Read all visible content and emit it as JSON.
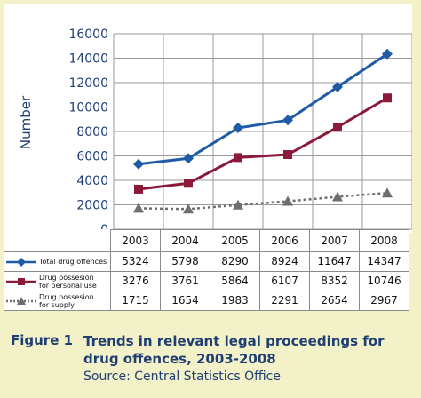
{
  "chart_data": {
    "type": "line",
    "categories": [
      "2003",
      "2004",
      "2005",
      "2006",
      "2007",
      "2008"
    ],
    "series": [
      {
        "name": "Total drug offences",
        "values": [
          5324,
          5798,
          8290,
          8924,
          11647,
          14347
        ],
        "color": "#1f5aa6",
        "marker": "diamond",
        "dash": "solid"
      },
      {
        "name": "Drug possesion for personal use",
        "name_lines": [
          "Drug possesion",
          "for personal use"
        ],
        "values": [
          3276,
          3761,
          5864,
          6107,
          8352,
          10746
        ],
        "color": "#8b1a3a",
        "marker": "square",
        "dash": "solid"
      },
      {
        "name": "Drug possesion for supply",
        "name_lines": [
          "Drug possesion",
          "for supply"
        ],
        "values": [
          1715,
          1654,
          1983,
          2291,
          2654,
          2967
        ],
        "color": "#6e6e6e",
        "marker": "triangle",
        "dash": "dotted"
      }
    ],
    "ylabel": "Number",
    "ylim": [
      0,
      16000
    ],
    "yticks": [
      0,
      2000,
      4000,
      6000,
      8000,
      10000,
      12000,
      14000,
      16000
    ],
    "grid": true,
    "legend_placement": "table-left"
  },
  "caption": {
    "label": "Figure 1",
    "title": "Trends in relevant legal proceedings for drug offences, 2003-2008",
    "source": "Source: Central Statistics Office"
  },
  "table": {
    "rows": [
      {
        "label": "Total drug offences",
        "values": [
          "5324",
          "5798",
          "8290",
          "8924",
          "11647",
          "14347"
        ]
      },
      {
        "label_lines": [
          "Drug possesion",
          "for personal use"
        ],
        "values": [
          "3276",
          "3761",
          "5864",
          "6107",
          "8352",
          "10746"
        ]
      },
      {
        "label_lines": [
          "Drug possesion",
          "for supply"
        ],
        "values": [
          "1715",
          "1654",
          "1983",
          "2291",
          "2654",
          "2967"
        ]
      }
    ]
  }
}
